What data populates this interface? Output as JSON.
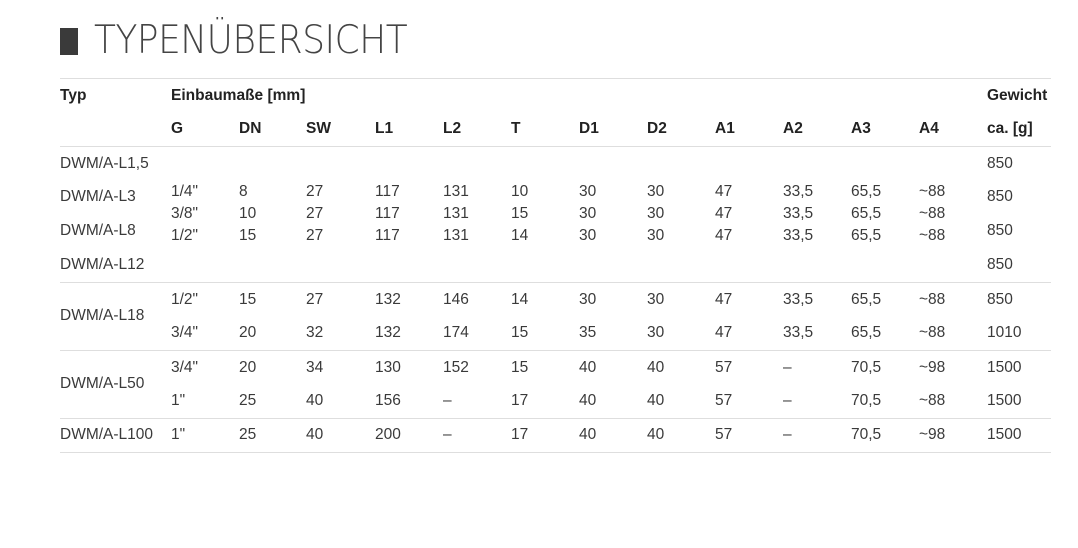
{
  "title": "TYPENÜBERSICHT",
  "header": {
    "typ": "Typ",
    "einbau": "Einbaumaße [mm]",
    "gewicht": "Gewicht",
    "columns": [
      "G",
      "DN",
      "SW",
      "L1",
      "L2",
      "T",
      "D1",
      "D2",
      "A1",
      "A2",
      "A3",
      "A4"
    ],
    "gewicht_unit": "ca. [g]"
  },
  "types": [
    "DWM/A-L1,5",
    "DWM/A-L3",
    "DWM/A-L8",
    "DWM/A-L12",
    "DWM/A-L18",
    "DWM/A-L50",
    "DWM/A-L100"
  ],
  "rows": [
    [
      "1/4\"",
      "8",
      "27",
      "117",
      "131",
      "10",
      "30",
      "30",
      "47",
      "33,5",
      "65,5",
      "~88"
    ],
    [
      "3/8\"",
      "10",
      "27",
      "117",
      "131",
      "15",
      "30",
      "30",
      "47",
      "33,5",
      "65,5",
      "~88"
    ],
    [
      "1/2\"",
      "15",
      "27",
      "117",
      "131",
      "14",
      "30",
      "30",
      "47",
      "33,5",
      "65,5",
      "~88"
    ],
    [
      "1/2\"",
      "15",
      "27",
      "132",
      "146",
      "14",
      "30",
      "30",
      "47",
      "33,5",
      "65,5",
      "~88"
    ],
    [
      "3/4\"",
      "20",
      "32",
      "132",
      "174",
      "15",
      "35",
      "30",
      "47",
      "33,5",
      "65,5",
      "~88"
    ],
    [
      "3/4\"",
      "20",
      "34",
      "130",
      "152",
      "15",
      "40",
      "40",
      "57",
      "–",
      "70,5",
      "~98"
    ],
    [
      "1\"",
      "25",
      "40",
      "156",
      "–",
      "17",
      "40",
      "40",
      "57",
      "–",
      "70,5",
      "~88"
    ],
    [
      "1\"",
      "25",
      "40",
      "200",
      "–",
      "17",
      "40",
      "40",
      "57",
      "–",
      "70,5",
      "~98"
    ]
  ],
  "weights": [
    "850",
    "850",
    "850",
    "850",
    "850",
    "1010",
    "1500",
    "1500",
    "1500"
  ]
}
